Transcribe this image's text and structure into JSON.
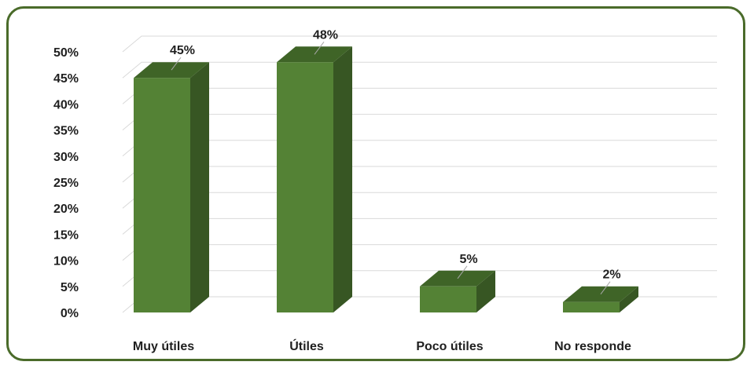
{
  "chart_data": {
    "type": "bar",
    "categories": [
      "Muy útiles",
      "Útiles",
      "Poco útiles",
      "No responde"
    ],
    "values": [
      45,
      48,
      5,
      2
    ],
    "data_labels": [
      "45%",
      "48%",
      "5%",
      "2%"
    ],
    "title": "",
    "xlabel": "",
    "ylabel": "",
    "ylim": [
      0,
      50
    ],
    "y_ticks": [
      "0%",
      "5%",
      "10%",
      "15%",
      "20%",
      "25%",
      "30%",
      "35%",
      "40%",
      "45%",
      "50%"
    ],
    "grid": true,
    "legend": "none",
    "bar_style": "3d",
    "colors": {
      "bar_front": "#548235",
      "bar_top": "#3f6427",
      "bar_side": "#375623",
      "border": "#4a6b2a",
      "grid": "#d9d9d9"
    }
  }
}
